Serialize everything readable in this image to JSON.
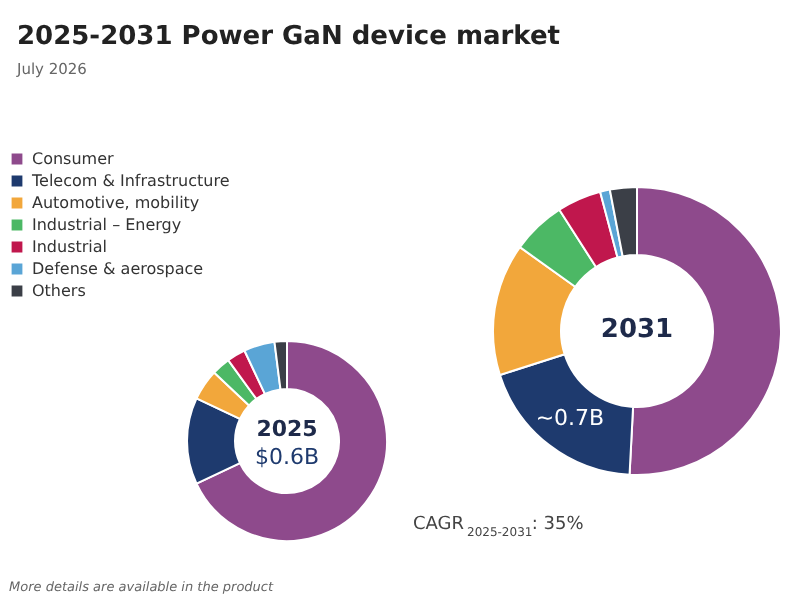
{
  "chart_data": [
    {
      "type": "donut",
      "title": "2025-2031 Power GaN device market",
      "subtitle": "July 2026",
      "categories": [
        "Consumer",
        "Telecom & Infrastructure",
        "Automotive, mobility",
        "Industrial – Energy",
        "Industrial",
        "Defense & aerospace",
        "Others"
      ],
      "values": [
        68,
        14,
        5,
        3,
        3,
        5,
        2
      ],
      "colors": [
        "#8e4a8c",
        "#1e3a6e",
        "#f2a73b",
        "#4cb865",
        "#c0174d",
        "#5aa5d6",
        "#3b3f47"
      ],
      "legend": "top left",
      "annotations": [
        "2025",
        "$0.6B",
        "CAGR $_{2025-2031}$: 35%",
        "More details are available in the product"
      ]
    },
    {
      "type": "donut",
      "categories": [
        null,
        null,
        null,
        null,
        null,
        null,
        null
      ],
      "values": [
        1.85,
        0.7,
        0.54,
        0.22,
        0.18,
        0.04,
        0.11
      ],
      "colors": [
        "#8e4a8c",
        "#1e3a6e",
        "#f2a73b",
        "#4cb865",
        "#c0174d",
        "#5aa5d6",
        "#3b3f47"
      ],
      "value_labels": [
        null,
        "~0.7B",
        null,
        null,
        null,
        null,
        null
      ],
      "annotations": [
        "2031"
      ]
    }
  ]
}
